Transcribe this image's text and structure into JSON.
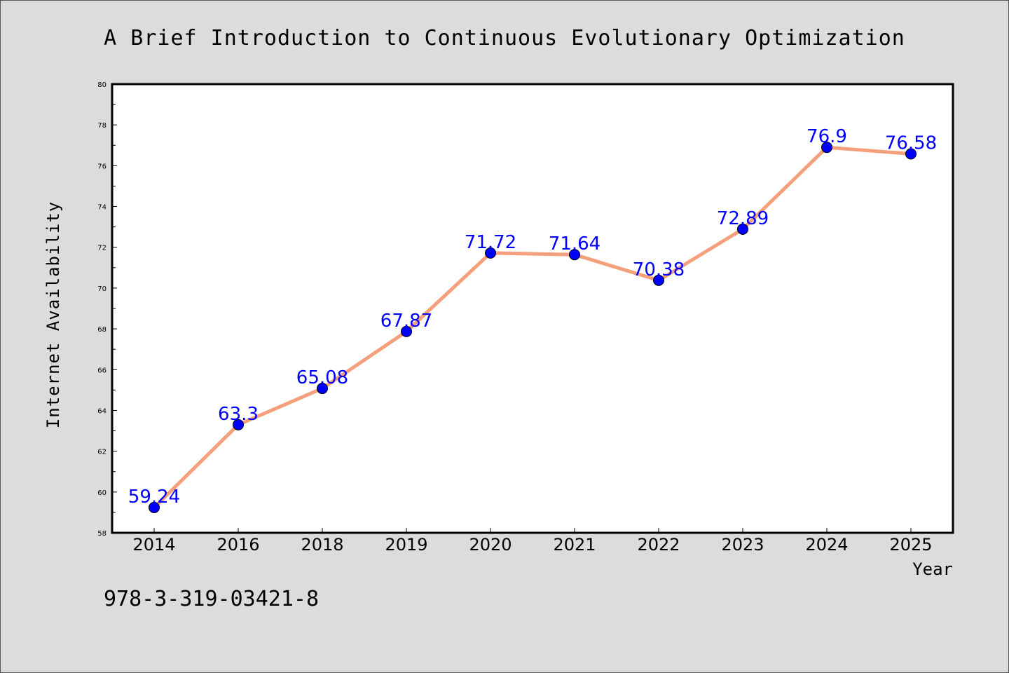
{
  "chart_data": {
    "type": "line",
    "title": "A Brief Introduction to Continuous Evolutionary Optimization",
    "xlabel": "Year",
    "ylabel": "Internet Availability",
    "categories": [
      "2014",
      "2016",
      "2018",
      "2019",
      "2020",
      "2021",
      "2022",
      "2023",
      "2024",
      "2025"
    ],
    "values": [
      59.24,
      63.3,
      65.08,
      67.87,
      71.72,
      71.64,
      70.38,
      72.89,
      76.9,
      76.58
    ],
    "data_labels": [
      "59.24",
      "63.3",
      "65.08",
      "67.87",
      "71.72",
      "71.64",
      "70.38",
      "72.89",
      "76.9",
      "76.58"
    ],
    "ylim": [
      58,
      80
    ],
    "yticks": [
      "58",
      "60",
      "62",
      "64",
      "66",
      "68",
      "70",
      "72",
      "74",
      "76",
      "78",
      "80"
    ],
    "grid": false,
    "legend": "none",
    "line_color": "#f4a07c",
    "marker_color": "#0000ff",
    "label_color": "#0000ff",
    "background": "#dcdcdc",
    "plot_background": "#ffffff"
  },
  "footer": {
    "isbn": "978-3-319-03421-8"
  }
}
